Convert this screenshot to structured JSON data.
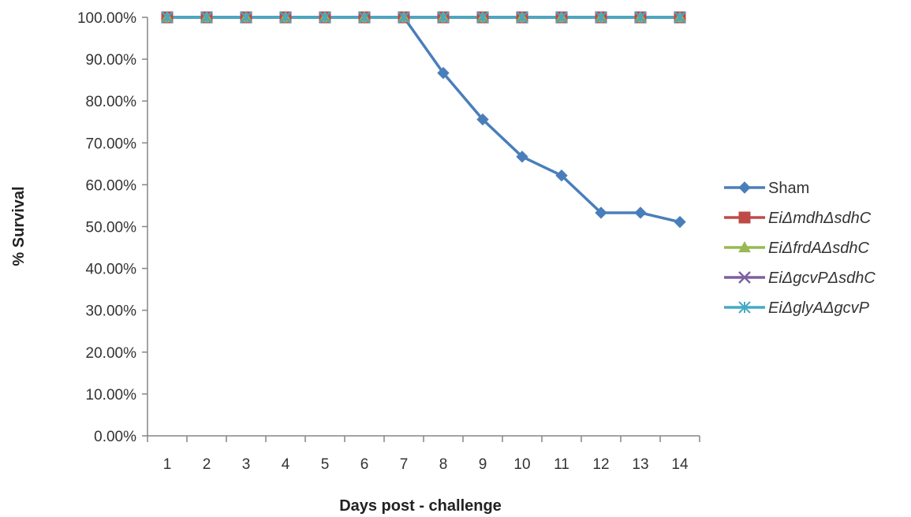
{
  "chart_data": {
    "type": "line",
    "title": "",
    "xlabel": "Days post - challenge",
    "ylabel": "% Survival",
    "categories": [
      "1",
      "2",
      "3",
      "4",
      "5",
      "6",
      "7",
      "8",
      "9",
      "10",
      "11",
      "12",
      "13",
      "14"
    ],
    "ylim": [
      0,
      100
    ],
    "yticks": [
      "0.00%",
      "10.00%",
      "20.00%",
      "30.00%",
      "40.00%",
      "50.00%",
      "60.00%",
      "70.00%",
      "80.00%",
      "90.00%",
      "100.00%"
    ],
    "grid": false,
    "legend_position": "right",
    "series": [
      {
        "name": "Sham",
        "color": "#4a7ebb",
        "marker": "diamond",
        "italic": false,
        "values": [
          100,
          100,
          100,
          100,
          100,
          100,
          100,
          86.7,
          75.6,
          66.7,
          62.2,
          53.3,
          53.3,
          51.1
        ]
      },
      {
        "name": "EiΔmdhΔsdhC",
        "color": "#be4b48",
        "marker": "square",
        "italic": true,
        "values": [
          100,
          100,
          100,
          100,
          100,
          100,
          100,
          100,
          100,
          100,
          100,
          100,
          100,
          100
        ]
      },
      {
        "name": "EiΔfrdAΔsdhC",
        "color": "#98b954",
        "marker": "triangle",
        "italic": true,
        "values": [
          100,
          100,
          100,
          100,
          100,
          100,
          100,
          100,
          100,
          100,
          100,
          100,
          100,
          100
        ]
      },
      {
        "name": "EiΔgcvPΔsdhC",
        "color": "#7d60a0",
        "marker": "x",
        "italic": true,
        "values": [
          100,
          100,
          100,
          100,
          100,
          100,
          100,
          100,
          100,
          100,
          100,
          100,
          100,
          100
        ]
      },
      {
        "name": "EiΔglyAΔgcvP",
        "color": "#46aac5",
        "marker": "star",
        "italic": true,
        "values": [
          100,
          100,
          100,
          100,
          100,
          100,
          100,
          100,
          100,
          100,
          100,
          100,
          100,
          100
        ]
      }
    ]
  }
}
